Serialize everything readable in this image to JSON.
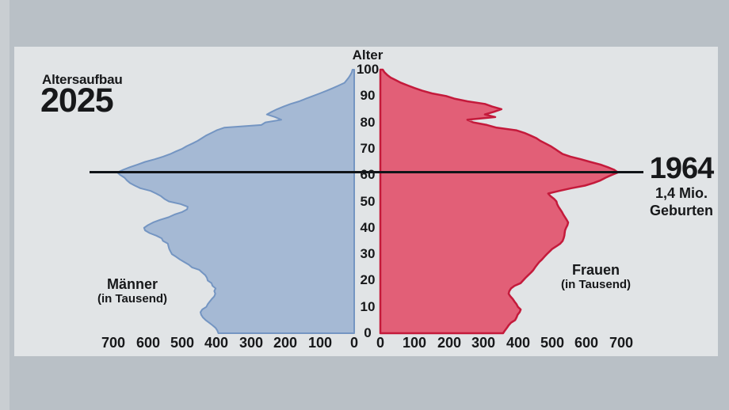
{
  "page": {
    "outer_bg": "#b9c0c6",
    "panel_bg": "#e1e4e6",
    "left_strip_color": "#c9ced2",
    "text_color": "#17181a",
    "ref_line_color": "#101418"
  },
  "header": {
    "title": "Altersaufbau",
    "year": "2025"
  },
  "axis": {
    "age_label": "Alter",
    "age_ticks": [
      0,
      10,
      20,
      30,
      40,
      50,
      60,
      70,
      80,
      90,
      100
    ],
    "value_ticks": [
      0,
      100,
      200,
      300,
      400,
      500,
      600,
      700
    ]
  },
  "left_side_label": {
    "name": "Männer",
    "unit": "(in Tausend)"
  },
  "right_side_label": {
    "name": "Frauen",
    "unit": "(in Tausend)"
  },
  "annotation": {
    "year": "1964",
    "line1": "1,4 Mio.",
    "line2": "Geburten"
  },
  "chart_data": {
    "type": "area",
    "subtype": "population-pyramid",
    "title": "Altersaufbau 2025",
    "x_axis": {
      "unit": "in Tausend",
      "max": 700,
      "tick_step": 100,
      "mirrored": true
    },
    "y_axis": {
      "label": "Alter",
      "min": 0,
      "max": 100,
      "tick_step": 10
    },
    "annotation_line": {
      "age": 61,
      "year": "1964",
      "text": "1,4 Mio. Geburten"
    },
    "ages_note": "index of values array = age in years (0..100)",
    "series": [
      {
        "name": "Männer",
        "side": "left",
        "fill": "#a5b9d4",
        "stroke": "#7495c2",
        "values_thousands": [
          395,
          398,
          403,
          412,
          422,
          432,
          440,
          445,
          447,
          442,
          430,
          426,
          420,
          414,
          407,
          404,
          407,
          403,
          412,
          415,
          426,
          428,
          433,
          442,
          450,
          472,
          481,
          494,
          507,
          518,
          530,
          534,
          538,
          540,
          542,
          556,
          560,
          575,
          595,
          608,
          611,
          600,
          585,
          565,
          540,
          523,
          500,
          486,
          484,
          505,
          539,
          552,
          562,
          576,
          592,
          622,
          638,
          652,
          661,
          668,
          680,
          689,
          672,
          652,
          630,
          608,
          580,
          556,
          535,
          518,
          500,
          487,
          470,
          455,
          443,
          431,
          415,
          400,
          378,
          270,
          258,
          212,
          230,
          254,
          240,
          224,
          205,
          185,
          160,
          140,
          120,
          100,
          80,
          62,
          45,
          28,
          22,
          16,
          11,
          7,
          5
        ]
      },
      {
        "name": "Frauen",
        "side": "right",
        "fill": "#e25f77",
        "stroke": "#c41a3b",
        "values_thousands": [
          357,
          362,
          368,
          373,
          380,
          392,
          396,
          399,
          405,
          408,
          400,
          396,
          390,
          385,
          378,
          373,
          375,
          380,
          390,
          408,
          415,
          422,
          430,
          438,
          445,
          450,
          456,
          462,
          470,
          477,
          484,
          492,
          500,
          512,
          523,
          530,
          533,
          535,
          536,
          537,
          540,
          544,
          546,
          542,
          537,
          532,
          528,
          523,
          518,
          514,
          512,
          505,
          495,
          488,
          520,
          555,
          595,
          620,
          640,
          655,
          672,
          691,
          680,
          661,
          640,
          610,
          583,
          553,
          530,
          518,
          507,
          495,
          480,
          465,
          454,
          437,
          419,
          395,
          338,
          310,
          270,
          253,
          334,
          304,
          330,
          352,
          325,
          304,
          253,
          215,
          191,
          150,
          122,
          100,
          80,
          60,
          45,
          30,
          20,
          12,
          7
        ]
      }
    ]
  }
}
